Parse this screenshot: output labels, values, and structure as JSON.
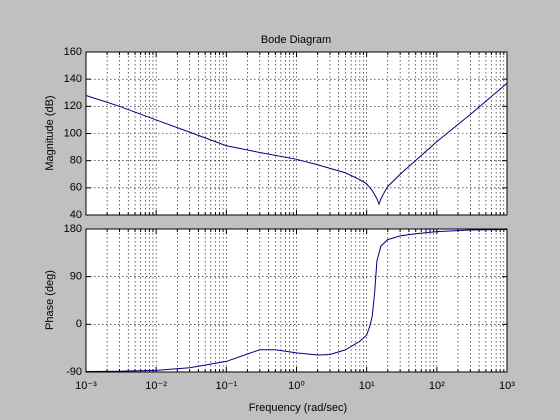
{
  "chart_data": [
    {
      "type": "line",
      "title": "Bode Diagram",
      "ylabel": "Magnitude (dB)",
      "log_x": true,
      "grid": true,
      "minor_grid": true,
      "xlim": [
        0.001,
        1000
      ],
      "ylim": [
        40,
        160
      ],
      "yticks": [
        40,
        60,
        80,
        100,
        120,
        140,
        160
      ],
      "series": [
        {
          "color": "#00007f",
          "x": [
            0.001,
            0.003,
            0.01,
            0.03,
            0.1,
            0.3,
            1,
            2,
            5,
            8,
            10,
            12,
            14,
            15,
            16,
            18,
            20,
            30,
            100,
            300,
            1000
          ],
          "values": [
            128,
            120,
            110,
            101,
            91,
            86,
            81,
            77,
            71,
            66,
            63,
            58,
            52,
            48,
            52,
            57,
            61,
            70,
            94,
            114,
            137
          ]
        }
      ]
    },
    {
      "type": "line",
      "xlabel": "Frequency  (rad/sec)",
      "ylabel": "Phase (deg)",
      "log_x": true,
      "grid": true,
      "minor_grid": true,
      "xlim": [
        0.001,
        1000
      ],
      "ylim": [
        -90,
        180
      ],
      "yticks": [
        -90,
        0,
        90,
        180
      ],
      "xticks": [
        {
          "value": 0.001,
          "label": "10⁻³"
        },
        {
          "value": 0.01,
          "label": "10⁻²"
        },
        {
          "value": 0.1,
          "label": "10⁻¹"
        },
        {
          "value": 1,
          "label": "10⁰"
        },
        {
          "value": 10,
          "label": "10¹"
        },
        {
          "value": 100,
          "label": "10²"
        },
        {
          "value": 1000,
          "label": "10³"
        }
      ],
      "series": [
        {
          "color": "#00007f",
          "x": [
            0.001,
            0.003,
            0.01,
            0.03,
            0.1,
            0.2,
            0.3,
            0.5,
            1,
            2,
            3,
            5,
            8,
            10,
            11,
            12,
            13,
            14,
            16,
            20,
            30,
            50,
            100,
            300,
            1000
          ],
          "values": [
            -89,
            -88.5,
            -87,
            -82,
            -70,
            -56,
            -48,
            -48,
            -54,
            -58,
            -57,
            -48,
            -32,
            -20,
            -5,
            15,
            60,
            120,
            148,
            160,
            167,
            171,
            175,
            178,
            179
          ]
        }
      ]
    }
  ]
}
